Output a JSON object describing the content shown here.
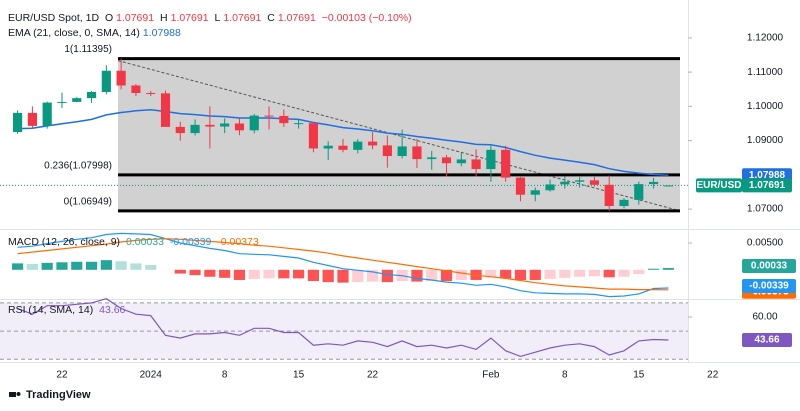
{
  "chart_data": [
    {
      "type": "candlestick",
      "title": "EUR/USD Spot, 1D",
      "symbol": "EUR/USD",
      "ohlc_labels": [
        "O",
        "H",
        "L",
        "C"
      ],
      "change_label": "−0.00103 (−0.10%)",
      "up_color": "#089981",
      "down_color": "#f23645",
      "xlim": [
        -1.19,
        52.9
      ],
      "xticks": [
        {
          "value": 3,
          "label": "22"
        },
        {
          "value": 9,
          "label": "2024"
        },
        {
          "value": 14,
          "label": "8"
        },
        {
          "value": 19,
          "label": "15"
        },
        {
          "value": 24,
          "label": "22"
        },
        {
          "value": 32,
          "label": "Feb"
        },
        {
          "value": 37,
          "label": "8"
        },
        {
          "value": 42,
          "label": "15"
        },
        {
          "value": 47,
          "label": "22"
        }
      ],
      "ylim": [
        1.06448,
        1.12814
      ],
      "yticks": [
        {
          "value": 1.12,
          "label": "1.12000"
        },
        {
          "value": 1.11,
          "label": "1.11000"
        },
        {
          "value": 1.1,
          "label": "1.10000"
        },
        {
          "value": 1.09,
          "label": "1.09000"
        },
        {
          "value": 1.07,
          "label": "1.07000"
        }
      ],
      "grid": false,
      "open": [
        1.0925,
        1.0981,
        1.0943,
        1.1011,
        1.1013,
        1.1024,
        1.1042,
        1.1104,
        1.1061,
        1.1039,
        1.1038,
        1.094,
        1.0922,
        1.0946,
        1.0941,
        1.095,
        1.093,
        1.0973,
        1.0972,
        1.0951,
        1.0951,
        1.0877,
        1.0885,
        1.0873,
        1.0897,
        1.0886,
        1.0855,
        1.0883,
        1.0846,
        1.0851,
        1.0834,
        1.0845,
        1.0817,
        1.0873,
        1.0792,
        1.0742,
        1.0755,
        1.0772,
        1.078,
        1.0784,
        1.0771,
        1.0709,
        1.0727,
        1.0773,
        1.07691
      ],
      "high": [
        1.0988,
        1.1,
        1.1014,
        1.104,
        1.1027,
        1.1045,
        1.112,
        1.11395,
        1.1065,
        1.1045,
        1.1046,
        1.0955,
        1.0962,
        1.1,
        1.0965,
        1.0965,
        1.0978,
        1.1,
        1.0991,
        1.0962,
        1.0954,
        1.0898,
        1.0905,
        1.0904,
        1.0925,
        1.0915,
        1.0932,
        1.0905,
        1.087,
        1.0858,
        1.0865,
        1.0875,
        1.089,
        1.0885,
        1.0794,
        1.0763,
        1.0786,
        1.0795,
        1.0794,
        1.0794,
        1.0798,
        1.0732,
        1.078,
        1.0791,
        1.07691
      ],
      "low": [
        1.092,
        1.0935,
        1.0935,
        1.0995,
        1.1012,
        1.101,
        1.1035,
        1.105,
        1.103,
        1.103,
        1.094,
        1.09,
        1.0915,
        1.0877,
        1.0922,
        1.0916,
        1.0921,
        1.0933,
        1.094,
        1.0935,
        1.0866,
        1.0843,
        1.0866,
        1.0863,
        1.0875,
        1.0821,
        1.0848,
        1.082,
        1.0815,
        1.0795,
        1.0825,
        1.0795,
        1.078,
        1.078,
        1.0723,
        1.0723,
        1.0751,
        1.076,
        1.0763,
        1.0766,
        1.06949,
        1.0702,
        1.0713,
        1.076,
        1.07691
      ],
      "close": [
        1.0981,
        1.0943,
        1.1011,
        1.1013,
        1.1024,
        1.1042,
        1.1104,
        1.1061,
        1.1039,
        1.1038,
        1.094,
        1.0922,
        1.0946,
        1.0941,
        1.095,
        1.093,
        1.0973,
        1.0972,
        1.0951,
        1.0951,
        1.0877,
        1.0885,
        1.0873,
        1.0897,
        1.0886,
        1.0855,
        1.0883,
        1.0846,
        1.0851,
        1.0834,
        1.0845,
        1.0817,
        1.0873,
        1.0792,
        1.0742,
        1.0755,
        1.0772,
        1.078,
        1.0784,
        1.0771,
        1.0709,
        1.0727,
        1.0773,
        1.07794,
        1.07691
      ],
      "ema": {
        "name": "EMA (21, close, 0, SMA, 14)",
        "color": "#1e6fe0",
        "values": [
          1.0935,
          1.0936,
          1.0943,
          1.0949,
          1.0955,
          1.0962,
          1.0975,
          1.0982,
          1.0987,
          1.099,
          1.0985,
          1.0979,
          1.0976,
          1.0972,
          1.097,
          1.0966,
          1.0966,
          1.0966,
          1.0964,
          1.0962,
          1.0953,
          1.0946,
          1.0938,
          1.0934,
          1.0929,
          1.0922,
          1.0918,
          1.0912,
          1.0907,
          1.0901,
          1.0896,
          1.0889,
          1.0888,
          1.088,
          1.0868,
          1.0857,
          1.0849,
          1.0843,
          1.0837,
          1.083,
          1.0818,
          1.081,
          1.0805,
          1.0801,
          1.07988
        ]
      },
      "fib_levels": [
        {
          "label": "1(1.11395)",
          "value": 1.11395
        },
        {
          "label": "0.236(1.07998)",
          "value": 1.07998
        },
        {
          "label": "0(1.06949)",
          "value": 1.06949
        }
      ]
    },
    {
      "type": "macd",
      "title": "MACD (12, 26, close, 9)",
      "ylim": [
        -0.00508,
        0.00706
      ],
      "yticks": [
        {
          "value": 0.005,
          "label": "0.00500"
        }
      ],
      "histogram_colors": [
        "#26a69a",
        "#b2dfdb",
        "#ff5252",
        "#ffcdd2"
      ],
      "series": [
        {
          "style": "columns",
          "color": "#26a69a",
          "values": [
            0.0012,
            0.0011,
            0.0013,
            0.0014,
            0.0015,
            0.0015,
            0.0018,
            0.0016,
            0.0012,
            0.0009,
            0,
            -0.0007,
            -0.001,
            -0.0013,
            -0.0015,
            -0.0019,
            -0.0017,
            -0.0016,
            -0.0016,
            -0.0016,
            -0.0021,
            -0.0023,
            -0.0024,
            -0.0023,
            -0.0022,
            -0.0023,
            -0.0021,
            -0.0022,
            -0.0021,
            -0.0021,
            -0.0019,
            -0.0019,
            -0.0014,
            -0.0016,
            -0.0019,
            -0.0019,
            -0.0017,
            -0.0015,
            -0.0013,
            -0.0012,
            -0.0014,
            -0.0013,
            -0.0008,
            0.0002,
            0.00033
          ]
        },
        {
          "style": "line",
          "color": "#2196f3",
          "values": [
            0.0042,
            0.0044,
            0.0049,
            0.0053,
            0.0057,
            0.006,
            0.0066,
            0.0068,
            0.0067,
            0.0066,
            0.0058,
            0.005,
            0.0045,
            0.004,
            0.0036,
            0.003,
            0.0029,
            0.0028,
            0.0025,
            0.0022,
            0.0014,
            0.0008,
            0.0002,
            -0.0001,
            -0.0004,
            -0.0009,
            -0.0011,
            -0.0016,
            -0.0019,
            -0.0023,
            -0.0025,
            -0.0029,
            -0.0027,
            -0.0032,
            -0.0039,
            -0.0043,
            -0.0044,
            -0.0045,
            -0.0045,
            -0.0046,
            -0.005,
            -0.0049,
            -0.0045,
            -0.0035,
            -0.00339
          ]
        },
        {
          "style": "line",
          "color": "#ff6d00",
          "values": [
            0.003,
            0.0033,
            0.0036,
            0.0039,
            0.0042,
            0.0045,
            0.0048,
            0.0052,
            0.0055,
            0.0057,
            0.0058,
            0.0057,
            0.0055,
            0.0053,
            0.0051,
            0.0049,
            0.0046,
            0.0044,
            0.0041,
            0.0038,
            0.0035,
            0.0031,
            0.0026,
            0.0022,
            0.0018,
            0.0014,
            0.001,
            0.0006,
            0.0002,
            -0.0002,
            -0.0006,
            -0.001,
            -0.0013,
            -0.0016,
            -0.002,
            -0.0024,
            -0.0027,
            -0.003,
            -0.0032,
            -0.0034,
            -0.0036,
            -0.0036,
            -0.0037,
            -0.0037,
            -0.00373
          ]
        }
      ]
    },
    {
      "type": "line",
      "title": "RSI (14, SMA, 14)",
      "ylim": [
        29.46,
        70.65
      ],
      "yticks": [
        {
          "value": 60,
          "label": "60.00"
        }
      ],
      "levels": [
        70,
        50,
        30
      ],
      "band_color": "rgba(126,87,194,0.1)",
      "series": [
        {
          "color": "#7e57c2",
          "values": [
            66,
            62,
            68,
            68,
            69,
            70,
            73,
            66,
            62,
            61,
            47,
            45,
            48,
            48,
            49,
            47,
            52,
            52,
            49,
            49,
            40,
            41,
            40,
            43,
            42,
            39,
            43,
            39,
            40,
            38,
            40,
            37,
            45,
            36,
            32,
            35,
            38,
            40,
            41,
            39,
            33,
            36,
            43,
            44,
            43.66
          ]
        }
      ]
    }
  ],
  "footer": {
    "brand": "TradingView"
  }
}
